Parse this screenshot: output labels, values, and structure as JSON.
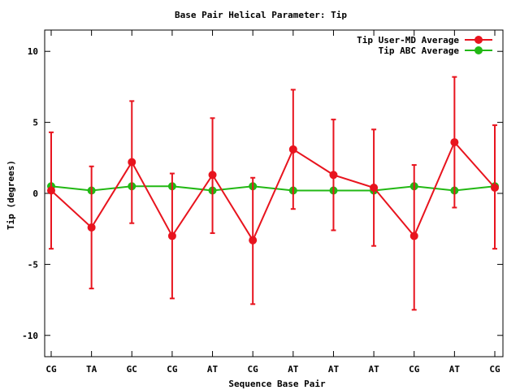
{
  "chart_data": {
    "type": "line",
    "title": "Base Pair Helical Parameter: Tip",
    "xlabel": "Sequence Base Pair",
    "ylabel": "Tip (degrees)",
    "categories": [
      "CG",
      "TA",
      "GC",
      "CG",
      "AT",
      "CG",
      "AT",
      "AT",
      "AT",
      "CG",
      "AT",
      "CG"
    ],
    "ylim": [
      -11.5,
      11.5
    ],
    "yticks": [
      -10,
      -5,
      0,
      5,
      10
    ],
    "ytick_labels": [
      "-10",
      "-5",
      "0",
      "5",
      "10"
    ],
    "legend_position": "top-right",
    "grid": false,
    "series": [
      {
        "name": "Tip User-MD Average",
        "color": "#e8141e",
        "values": [
          0.2,
          -2.4,
          2.2,
          -3.0,
          1.3,
          -3.3,
          3.1,
          1.3,
          0.4,
          -3.0,
          3.6,
          0.4
        ],
        "error_low": [
          -3.9,
          -6.7,
          -2.1,
          -7.4,
          -2.8,
          -7.8,
          -1.1,
          -2.6,
          -3.7,
          -8.2,
          -1.0,
          -3.9
        ],
        "error_high": [
          4.3,
          1.9,
          6.5,
          1.4,
          5.3,
          1.1,
          7.3,
          5.2,
          4.5,
          2.0,
          8.2,
          4.8
        ]
      },
      {
        "name": "Tip ABC Average",
        "color": "#22b814",
        "values": [
          0.5,
          0.2,
          0.5,
          0.5,
          0.2,
          0.5,
          0.2,
          0.2,
          0.2,
          0.5,
          0.2,
          0.5
        ]
      }
    ]
  }
}
